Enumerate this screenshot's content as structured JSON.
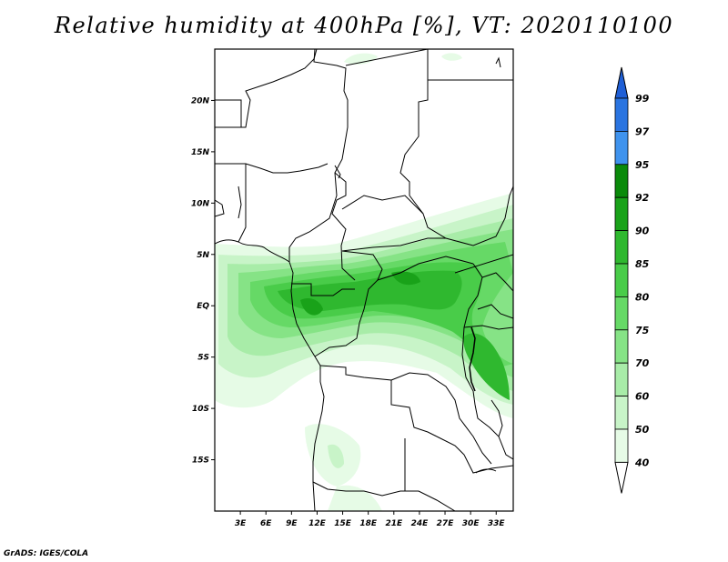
{
  "title": "Relative humidity at 400hPa [%], VT: 2020110100",
  "credit": "GrADS: IGES/COLA",
  "map": {
    "latitude_labels": [
      "20N",
      "15N",
      "10N",
      "5N",
      "EQ",
      "5S",
      "10S",
      "15S"
    ],
    "latitude_values": [
      20,
      15,
      10,
      5,
      0,
      -5,
      -10,
      -15
    ],
    "longitude_labels": [
      "3E",
      "6E",
      "9E",
      "12E",
      "15E",
      "18E",
      "21E",
      "24E",
      "27E",
      "30E",
      "33E"
    ],
    "longitude_values": [
      3,
      6,
      9,
      12,
      15,
      18,
      21,
      24,
      27,
      30,
      33
    ],
    "lat_range": [
      -20,
      25
    ],
    "lon_range": [
      0,
      35
    ]
  },
  "colorbar": {
    "labels": [
      "99",
      "97",
      "95",
      "92",
      "90",
      "85",
      "80",
      "75",
      "70",
      "60",
      "50",
      "40"
    ],
    "colors": [
      "#1f5fd6",
      "#2a74e0",
      "#3f93ee",
      "#0a8a0a",
      "#19a219",
      "#2fb82f",
      "#49cc49",
      "#66d966",
      "#86e386",
      "#a8eca8",
      "#c8f4c8",
      "#e6fbe6"
    ]
  }
}
